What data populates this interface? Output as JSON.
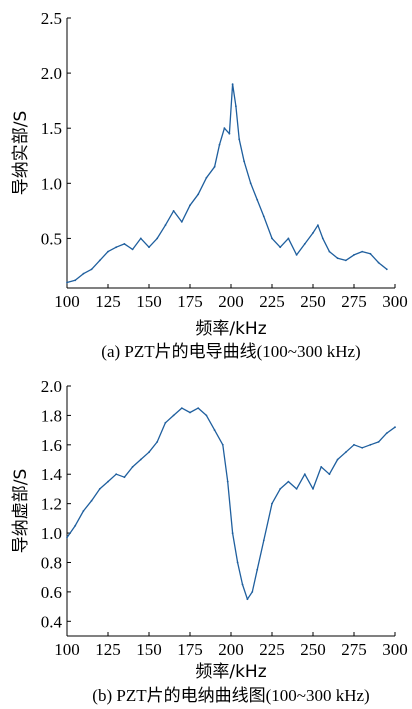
{
  "chart_data": [
    {
      "type": "line",
      "title": "",
      "caption": "(a) PZT片的电导曲线(100~300 kHz)",
      "xlabel": "频率/kHz",
      "ylabel": "导纳实部/S",
      "xlim": [
        100,
        300
      ],
      "ylim": [
        0.05,
        2.5
      ],
      "xticks": [
        "100",
        "125",
        "150",
        "175",
        "200",
        "225",
        "250",
        "275",
        "300"
      ],
      "yticks": [
        "0.5",
        "1.0",
        "1.5",
        "2.0",
        "2.5"
      ],
      "grid": false,
      "line_color": "#1f5f9e",
      "series": [
        {
          "x": [
            100,
            105,
            110,
            115,
            120,
            125,
            130,
            135,
            140,
            145,
            150,
            155,
            160,
            165,
            170,
            175,
            180,
            185,
            190,
            193,
            196,
            199,
            201,
            203,
            205,
            208,
            212,
            216,
            220,
            225,
            230,
            235,
            240,
            245,
            250,
            253,
            256,
            260,
            265,
            270,
            275,
            280,
            285,
            290,
            295
          ],
          "y": [
            0.1,
            0.12,
            0.18,
            0.22,
            0.3,
            0.38,
            0.42,
            0.45,
            0.4,
            0.5,
            0.42,
            0.5,
            0.62,
            0.75,
            0.65,
            0.8,
            0.9,
            1.05,
            1.15,
            1.35,
            1.5,
            1.45,
            1.9,
            1.7,
            1.4,
            1.2,
            1.0,
            0.85,
            0.7,
            0.5,
            0.42,
            0.5,
            0.35,
            0.45,
            0.55,
            0.62,
            0.5,
            0.38,
            0.32,
            0.3,
            0.35,
            0.38,
            0.36,
            0.28,
            0.22
          ]
        }
      ]
    },
    {
      "type": "line",
      "title": "",
      "caption": "(b) PZT片的电纳曲线图(100~300 kHz)",
      "xlabel": "频率/kHz",
      "ylabel": "导纳虚部/S",
      "xlim": [
        100,
        300
      ],
      "ylim": [
        0.3,
        2.0
      ],
      "xticks": [
        "100",
        "125",
        "150",
        "175",
        "200",
        "225",
        "250",
        "275",
        "300"
      ],
      "yticks": [
        "0.4",
        "0.6",
        "0.8",
        "1.0",
        "1.2",
        "1.4",
        "1.6",
        "1.8",
        "2.0"
      ],
      "grid": false,
      "line_color": "#1f5f9e",
      "series": [
        {
          "x": [
            100,
            105,
            110,
            115,
            120,
            125,
            130,
            135,
            140,
            145,
            150,
            155,
            160,
            165,
            170,
            175,
            180,
            185,
            190,
            195,
            198,
            201,
            204,
            207,
            210,
            213,
            216,
            220,
            225,
            230,
            235,
            240,
            245,
            250,
            255,
            260,
            265,
            270,
            275,
            280,
            285,
            290,
            295,
            300
          ],
          "y": [
            0.97,
            1.05,
            1.15,
            1.22,
            1.3,
            1.35,
            1.4,
            1.38,
            1.45,
            1.5,
            1.55,
            1.62,
            1.75,
            1.8,
            1.85,
            1.82,
            1.85,
            1.8,
            1.7,
            1.6,
            1.35,
            1.0,
            0.8,
            0.65,
            0.55,
            0.6,
            0.75,
            0.95,
            1.2,
            1.3,
            1.35,
            1.3,
            1.4,
            1.3,
            1.45,
            1.4,
            1.5,
            1.55,
            1.6,
            1.58,
            1.6,
            1.62,
            1.68,
            1.72
          ]
        }
      ]
    }
  ]
}
